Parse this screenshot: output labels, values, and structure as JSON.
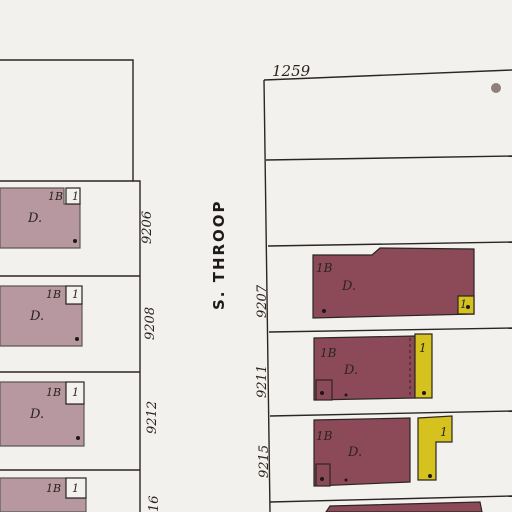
{
  "map": {
    "colors": {
      "paper": "#f3f1ee",
      "line": "#2b2622",
      "brick": "#8c4a58",
      "brick_light": "#a57b86",
      "frame": "#d6c21e"
    },
    "street": {
      "name": "S. THROOP"
    },
    "corner_number": "1259",
    "east_lots": [
      {
        "number": "9207",
        "stories": "1B",
        "type": "D.",
        "annex": "1"
      },
      {
        "number": "9211",
        "stories": "1B",
        "type": "D.",
        "annex": "1"
      },
      {
        "number": "9215",
        "stories": "1B",
        "type": "D.",
        "annex": "1"
      }
    ],
    "west_lots": [
      {
        "number": "9206",
        "stories": "1B",
        "type": "D.",
        "annex": "1"
      },
      {
        "number": "9208",
        "stories": "1B",
        "type": "D.",
        "annex": "1"
      },
      {
        "number": "9212",
        "stories": "1B",
        "type": "D.",
        "annex": "1"
      },
      {
        "number": "16",
        "stories": "1B",
        "type": "",
        "annex": "1"
      }
    ]
  }
}
